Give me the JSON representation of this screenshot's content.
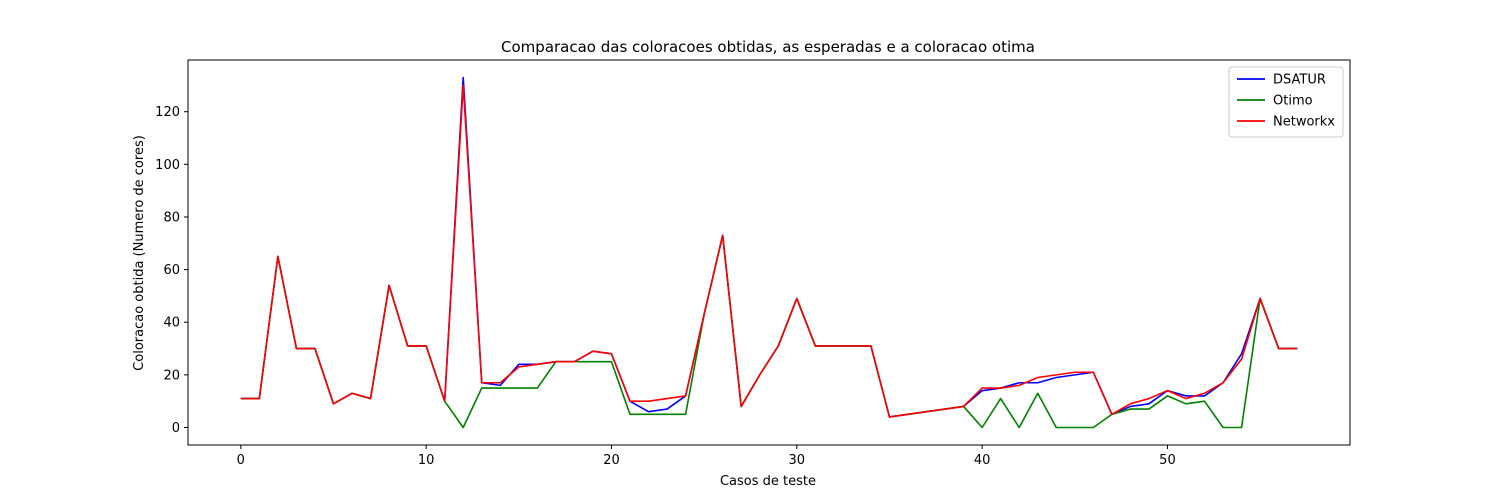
{
  "chart_data": {
    "type": "line",
    "title": "Comparacao das coloracoes obtidas, as esperadas e a coloracao otima",
    "xlabel": "Casos de teste",
    "ylabel": "Coloracao obtida (Numero de cores)",
    "xlim": [
      -2.85,
      59.85
    ],
    "ylim": [
      -6.65,
      139.65
    ],
    "xticks": [
      0,
      10,
      20,
      30,
      40,
      50
    ],
    "yticks": [
      0,
      20,
      40,
      60,
      80,
      100,
      120
    ],
    "grid": false,
    "legend_position": "top-right",
    "x": [
      0,
      1,
      2,
      3,
      4,
      5,
      6,
      7,
      8,
      9,
      10,
      11,
      12,
      13,
      14,
      15,
      16,
      17,
      18,
      19,
      20,
      21,
      22,
      23,
      24,
      25,
      26,
      27,
      28,
      29,
      30,
      31,
      32,
      33,
      34,
      35,
      36,
      37,
      38,
      39,
      40,
      41,
      42,
      43,
      44,
      45,
      46,
      47,
      48,
      49,
      50,
      51,
      52,
      53,
      54,
      55,
      56,
      57
    ],
    "series": [
      {
        "name": "DSATUR",
        "color": "#0000ff",
        "values": [
          11,
          11,
          65,
          30,
          30,
          9,
          13,
          11,
          54,
          31,
          31,
          10,
          133,
          17,
          16,
          24,
          24,
          25,
          25,
          29,
          28,
          10,
          6,
          7,
          12,
          43,
          73,
          8,
          20,
          31,
          49,
          31,
          31,
          31,
          31,
          4,
          5,
          6,
          7,
          8,
          14,
          15,
          17,
          17,
          19,
          20,
          21,
          5,
          8,
          9,
          14,
          12,
          12,
          17,
          28,
          49,
          30,
          30
        ]
      },
      {
        "name": "Otimo",
        "color": "#008000",
        "values": [
          11,
          11,
          65,
          30,
          30,
          9,
          13,
          11,
          54,
          31,
          31,
          10,
          0,
          15,
          15,
          15,
          15,
          25,
          25,
          25,
          25,
          5,
          5,
          5,
          5,
          43,
          73,
          8,
          20,
          31,
          49,
          31,
          31,
          31,
          31,
          4,
          5,
          6,
          7,
          8,
          0,
          11,
          0,
          13,
          0,
          0,
          0,
          5,
          7,
          7,
          12,
          9,
          10,
          0,
          0,
          49,
          30,
          30
        ]
      },
      {
        "name": "Networkx",
        "color": "#ff0000",
        "values": [
          11,
          11,
          65,
          30,
          30,
          9,
          13,
          11,
          54,
          31,
          31,
          10,
          130,
          17,
          17,
          23,
          24,
          25,
          25,
          29,
          28,
          10,
          10,
          11,
          12,
          43,
          73,
          8,
          20,
          31,
          49,
          31,
          31,
          31,
          31,
          4,
          5,
          6,
          7,
          8,
          15,
          15,
          16,
          19,
          20,
          21,
          21,
          5,
          9,
          11,
          14,
          11,
          13,
          17,
          26,
          49,
          30,
          30
        ]
      }
    ]
  }
}
